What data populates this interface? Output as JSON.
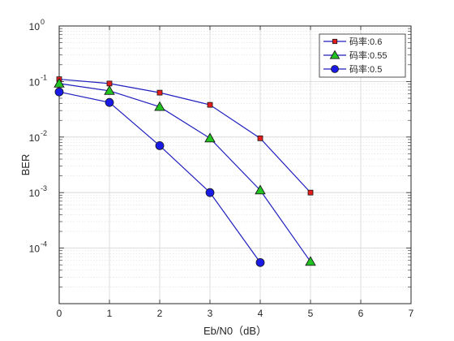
{
  "chart_data": {
    "type": "line",
    "title": "",
    "xlabel": "Eb/N0（dB）",
    "ylabel": "BER",
    "xlim": [
      0,
      7
    ],
    "ylim": [
      1e-05,
      1
    ],
    "yscale": "log",
    "x_ticks": [
      0,
      1,
      2,
      3,
      4,
      5,
      6,
      7
    ],
    "y_ticks": [
      {
        "value": 1,
        "exp": "0"
      },
      {
        "value": 0.1,
        "exp": "-1"
      },
      {
        "value": 0.01,
        "exp": "-2"
      },
      {
        "value": 0.001,
        "exp": "-3"
      },
      {
        "value": 0.0001,
        "exp": "-4"
      }
    ],
    "y_tick_base": "10",
    "grid": true,
    "minor_grid": true,
    "legend_position": "top-right",
    "series": [
      {
        "name": "码率:0.6",
        "marker": "square",
        "line_color": "#1f1fbf",
        "marker_fill": "#e51c1c",
        "x": [
          0,
          1,
          2,
          3,
          4,
          5
        ],
        "y": [
          0.11,
          0.092,
          0.063,
          0.038,
          0.0095,
          0.001
        ]
      },
      {
        "name": "码率:0.55",
        "marker": "triangle",
        "line_color": "#1f1fbf",
        "marker_fill": "#22c422",
        "x": [
          0,
          1,
          2,
          3,
          4,
          5
        ],
        "y": [
          0.092,
          0.068,
          0.035,
          0.0095,
          0.0011,
          5.7e-05
        ]
      },
      {
        "name": "码率:0.5",
        "marker": "circle",
        "line_color": "#1f1fbf",
        "marker_fill": "#1a1ae6",
        "x": [
          0,
          1,
          2,
          3,
          4
        ],
        "y": [
          0.065,
          0.042,
          0.007,
          0.001,
          5.5e-05
        ]
      }
    ]
  }
}
